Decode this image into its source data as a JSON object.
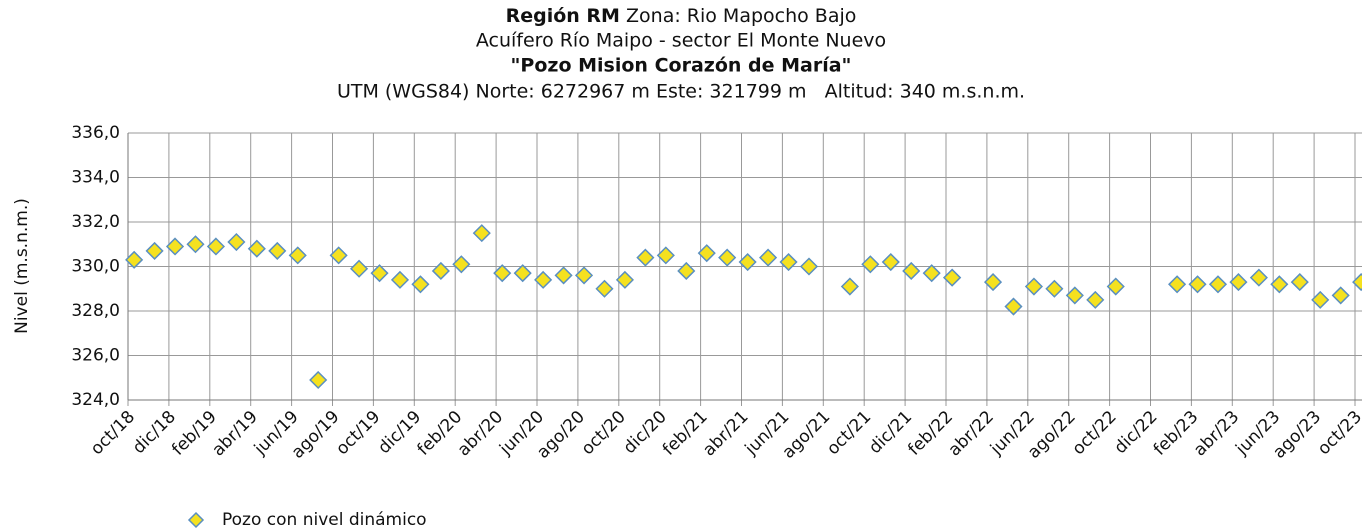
{
  "chart_data": {
    "type": "scatter",
    "title_bold": "Región RM",
    "title_rest": "Zona: Rio Mapocho Bajo",
    "subtitle": "Acuífero Río Maipo - sector El Monte Nuevo",
    "well_name": "\"Pozo Mision Corazón de María\"",
    "location": "UTM (WGS84) Norte: 6272967 m Este: 321799 m   Altitud: 340 m.s.n.m.",
    "y_label": "Nivel (m.s.n.m.)",
    "ylim": [
      324,
      336
    ],
    "yticks": [
      {
        "value": 324,
        "label": "324,0"
      },
      {
        "value": 326,
        "label": "326,0"
      },
      {
        "value": 328,
        "label": "328,0"
      },
      {
        "value": 330,
        "label": "330,0"
      },
      {
        "value": 332,
        "label": "332,0"
      },
      {
        "value": 334,
        "label": "334,0"
      },
      {
        "value": 336,
        "label": "336,0"
      }
    ],
    "xticks": [
      "oct/18",
      "dic/18",
      "feb/19",
      "abr/19",
      "jun/19",
      "ago/19",
      "oct/19",
      "dic/19",
      "feb/20",
      "abr/20",
      "jun/20",
      "ago/20",
      "oct/20",
      "dic/20",
      "feb/21",
      "abr/21",
      "jun/21",
      "ago/21",
      "oct/21",
      "dic/21",
      "feb/22",
      "abr/22",
      "jun/22",
      "ago/22",
      "oct/22",
      "dic/22",
      "feb/23",
      "abr/23",
      "jun/23",
      "ago/23",
      "oct/23"
    ],
    "grid": true,
    "x": [
      "oct/18",
      "nov/18",
      "dic/18",
      "ene/19",
      "feb/19",
      "mar/19",
      "abr/19",
      "may/19",
      "jun/19",
      "jul/19",
      "ago/19",
      "sep/19",
      "oct/19",
      "nov/19",
      "dic/19",
      "ene/20",
      "feb/20",
      "mar/20",
      "abr/20",
      "may/20",
      "jun/20",
      "jul/20",
      "ago/20",
      "sep/20",
      "oct/20",
      "nov/20",
      "dic/20",
      "ene/21",
      "feb/21",
      "mar/21",
      "abr/21",
      "may/21",
      "jun/21",
      "jul/21",
      "sep/21",
      "oct/21",
      "nov/21",
      "dic/21",
      "ene/22",
      "feb/22",
      "feb/22",
      "abr/22",
      "may/22",
      "jun/22",
      "jul/22",
      "ago/22",
      "sep/22",
      "oct/22",
      "ene/23",
      "feb/23",
      "mar/23",
      "abr/23",
      "may/23",
      "jun/23",
      "jul/23",
      "ago/23",
      "sep/23",
      "oct/23"
    ],
    "series": [
      {
        "name": "Pozo con nivel dinámico",
        "color": "#f5e11f",
        "values": [
          330.3,
          330.7,
          330.9,
          331.0,
          330.9,
          331.1,
          330.8,
          330.7,
          330.5,
          324.9,
          330.5,
          329.9,
          329.7,
          329.4,
          329.2,
          329.8,
          330.1,
          331.5,
          329.7,
          329.7,
          329.4,
          329.6,
          329.6,
          329.0,
          329.4,
          330.4,
          330.5,
          329.8,
          330.6,
          330.4,
          330.2,
          330.4,
          330.2,
          330.0,
          329.1,
          330.1,
          330.2,
          329.8,
          329.7,
          329.5,
          329.5,
          329.3,
          328.2,
          329.1,
          329.0,
          328.7,
          328.5,
          329.1,
          329.2,
          329.2,
          329.2,
          329.3,
          329.5,
          329.2,
          329.3,
          328.5,
          328.7,
          329.3
        ]
      }
    ]
  }
}
